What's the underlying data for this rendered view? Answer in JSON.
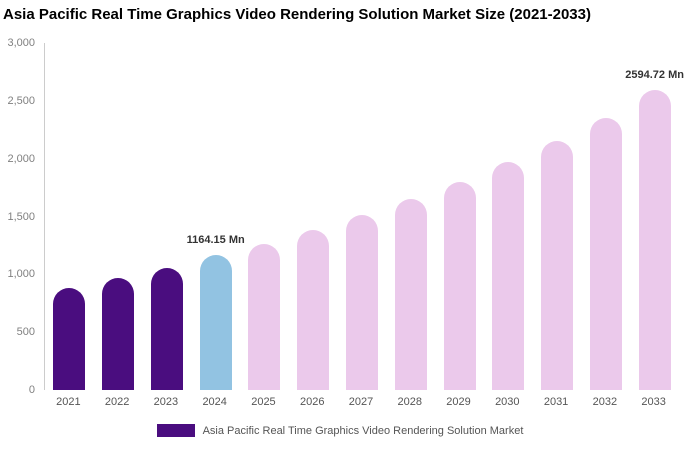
{
  "chart_data": {
    "type": "bar",
    "title": "Asia Pacific Real Time Graphics Video Rendering Solution Market Size (2021-2033)",
    "categories": [
      "2021",
      "2022",
      "2023",
      "2024",
      "2025",
      "2026",
      "2027",
      "2028",
      "2029",
      "2030",
      "2031",
      "2032",
      "2033"
    ],
    "values": [
      885,
      965,
      1055,
      1164.15,
      1265,
      1380,
      1510,
      1650,
      1795,
      1975,
      2150,
      2355,
      2594.72
    ],
    "unit": "Mn",
    "xlabel": "",
    "ylabel": "",
    "ylim": [
      0,
      3000
    ],
    "ytick_step": 500,
    "ytick_labels": [
      "0",
      "500",
      "1,000",
      "1,500",
      "2,000",
      "2,500",
      "3,000"
    ],
    "grid": false,
    "bar_colors": [
      "#4A0D7F",
      "#4A0D7F",
      "#4A0D7F",
      "#92C3E2",
      "#EBC9EB",
      "#EBC9EB",
      "#EBC9EB",
      "#EBC9EB",
      "#EBC9EB",
      "#EBC9EB",
      "#EBC9EB",
      "#EBC9EB",
      "#EBC9EB"
    ],
    "colors": {
      "historical": "#4A0D7F",
      "current_year": "#92C3E2",
      "forecast": "#EBC9EB"
    },
    "annotations": [
      {
        "category": "2024",
        "text": "1164.15 Mn"
      },
      {
        "category": "2033",
        "text": "2594.72 Mn"
      }
    ],
    "legend": {
      "position": "bottom",
      "items": [
        {
          "label": "Asia Pacific Real Time Graphics Video Rendering Solution Market",
          "color": "#4A0D7F"
        }
      ]
    }
  }
}
